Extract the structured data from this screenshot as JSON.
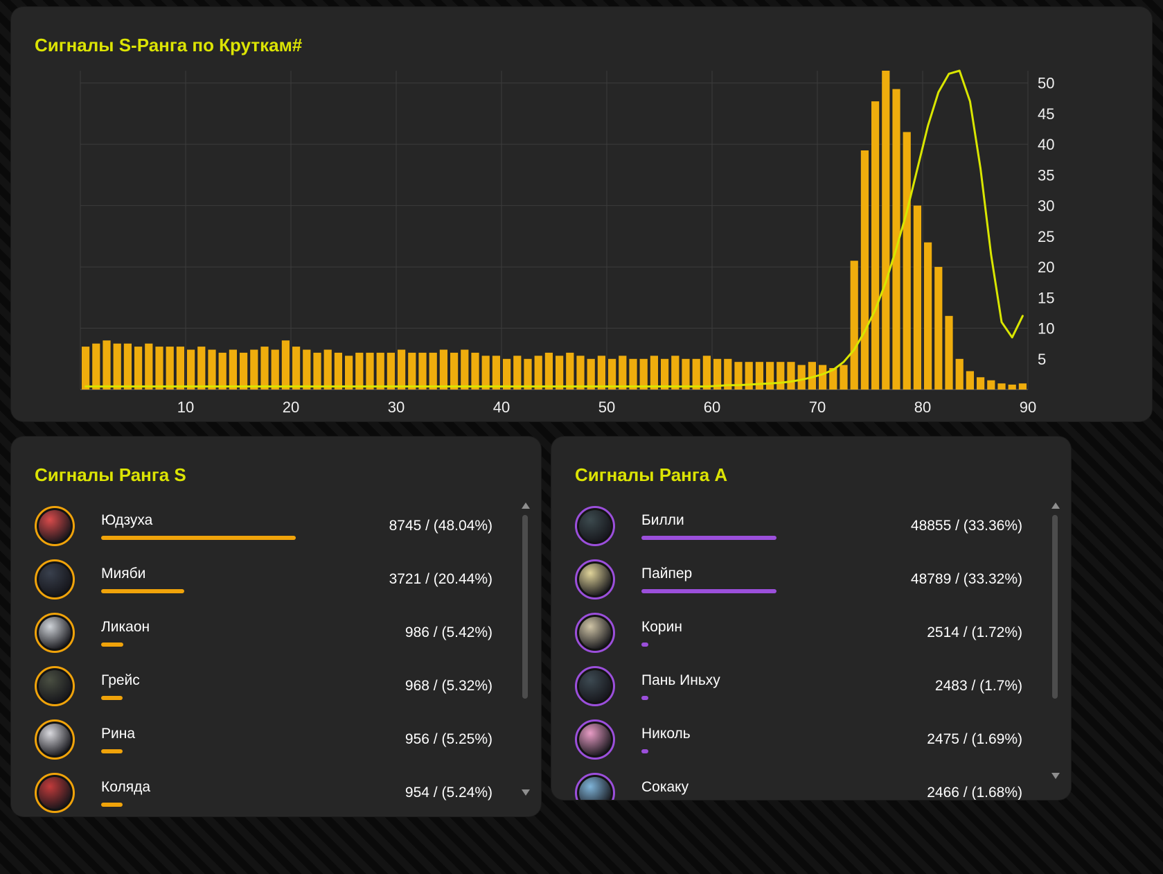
{
  "colors": {
    "title": "#dce404",
    "bar": "#efad0d",
    "line": "#d9e600",
    "grid": "#3c3c3c",
    "axis_text": "#f0f0f0",
    "s_accent": "#f0a30a",
    "a_accent": "#9b4fdb"
  },
  "chart_panel": {
    "title": "Сигналы S-Ранга по Круткам#"
  },
  "chart_data": {
    "type": "bar+line",
    "xlabel": "",
    "ylabel": "",
    "x_ticks": [
      10,
      20,
      30,
      40,
      50,
      60,
      70,
      80,
      90
    ],
    "y_ticks": [
      5,
      10,
      15,
      20,
      25,
      30,
      35,
      40,
      45,
      50
    ],
    "xlim": [
      0,
      90
    ],
    "ylim": [
      0,
      52
    ],
    "grid": true,
    "legend": "none",
    "bar_color": "#efad0d",
    "line_color": "#d9e600",
    "bars": [
      7,
      7.5,
      8,
      7.5,
      7.5,
      7,
      7.5,
      7,
      7,
      7,
      6.5,
      7,
      6.5,
      6,
      6.5,
      6,
      6.5,
      7,
      6.5,
      8,
      7,
      6.5,
      6,
      6.5,
      6,
      5.5,
      6,
      6,
      6,
      6,
      6.5,
      6,
      6,
      6,
      6.5,
      6,
      6.5,
      6,
      5.5,
      5.5,
      5,
      5.5,
      5,
      5.5,
      6,
      5.5,
      6,
      5.5,
      5,
      5.5,
      5,
      5.5,
      5,
      5,
      5.5,
      5,
      5.5,
      5,
      5,
      5.5,
      5,
      5,
      4.5,
      4.5,
      4.5,
      4.5,
      4.5,
      4.5,
      4,
      4.5,
      4,
      3.5,
      4,
      21,
      39,
      47,
      53,
      49,
      42,
      30,
      24,
      20,
      12,
      5,
      3,
      2,
      1.5,
      1,
      0.8,
      1
    ],
    "line": [
      0.5,
      0.5,
      0.5,
      0.5,
      0.5,
      0.5,
      0.5,
      0.5,
      0.5,
      0.5,
      0.5,
      0.5,
      0.5,
      0.5,
      0.5,
      0.5,
      0.5,
      0.5,
      0.5,
      0.5,
      0.5,
      0.5,
      0.5,
      0.5,
      0.5,
      0.5,
      0.5,
      0.5,
      0.5,
      0.5,
      0.5,
      0.5,
      0.5,
      0.5,
      0.5,
      0.5,
      0.5,
      0.5,
      0.5,
      0.5,
      0.5,
      0.5,
      0.5,
      0.5,
      0.5,
      0.5,
      0.5,
      0.5,
      0.5,
      0.5,
      0.5,
      0.5,
      0.5,
      0.5,
      0.5,
      0.5,
      0.5,
      0.5,
      0.5,
      0.5,
      0.6,
      0.7,
      0.7,
      0.8,
      0.9,
      1,
      1.1,
      1.3,
      1.6,
      2,
      2.5,
      3.2,
      4.5,
      6.5,
      9.5,
      13,
      17.5,
      23,
      29,
      36,
      43,
      48.5,
      51.5,
      52,
      47,
      36,
      22,
      11,
      8.5,
      12
    ]
  },
  "s_rank_panel": {
    "title": "Сигналы Ранга S",
    "ring": "#f0a30a",
    "accent": "#f0a30a",
    "items": [
      {
        "name": "Юдзуха",
        "value": "8745 / (48.04%)",
        "pct": 48.04,
        "avatar_color": "#d84b4b"
      },
      {
        "name": "Мияби",
        "value": "3721 / (20.44%)",
        "pct": 20.44,
        "avatar_color": "#39404d"
      },
      {
        "name": "Ликаон",
        "value": "986 / (5.42%)",
        "pct": 5.42,
        "avatar_color": "#cfd3d8"
      },
      {
        "name": "Грейс",
        "value": "968 / (5.32%)",
        "pct": 5.32,
        "avatar_color": "#4a4f42"
      },
      {
        "name": "Рина",
        "value": "956 / (5.25%)",
        "pct": 5.25,
        "avatar_color": "#d9d9de"
      },
      {
        "name": "Коляда",
        "value": "954 / (5.24%)",
        "pct": 5.24,
        "avatar_color": "#c23b3b"
      }
    ]
  },
  "a_rank_panel": {
    "title": "Сигналы Ранга A",
    "ring": "#9b4fdb",
    "accent": "#9b4fdb",
    "items": [
      {
        "name": "Билли",
        "value": "48855 / (33.36%)",
        "pct": 33.36,
        "avatar_color": "#3c4a4e"
      },
      {
        "name": "Пайпер",
        "value": "48789 / (33.32%)",
        "pct": 33.32,
        "avatar_color": "#e0d49a"
      },
      {
        "name": "Корин",
        "value": "2514 / (1.72%)",
        "pct": 1.72,
        "avatar_color": "#cfc4a6"
      },
      {
        "name": "Пань Иньху",
        "value": "2483 / (1.7%)",
        "pct": 1.7,
        "avatar_color": "#3d4a52"
      },
      {
        "name": "Николь",
        "value": "2475 / (1.69%)",
        "pct": 1.69,
        "avatar_color": "#e89cc5"
      },
      {
        "name": "Сокаку",
        "value": "2466 / (1.68%)",
        "pct": 1.68,
        "avatar_color": "#7fb4d9"
      }
    ]
  }
}
